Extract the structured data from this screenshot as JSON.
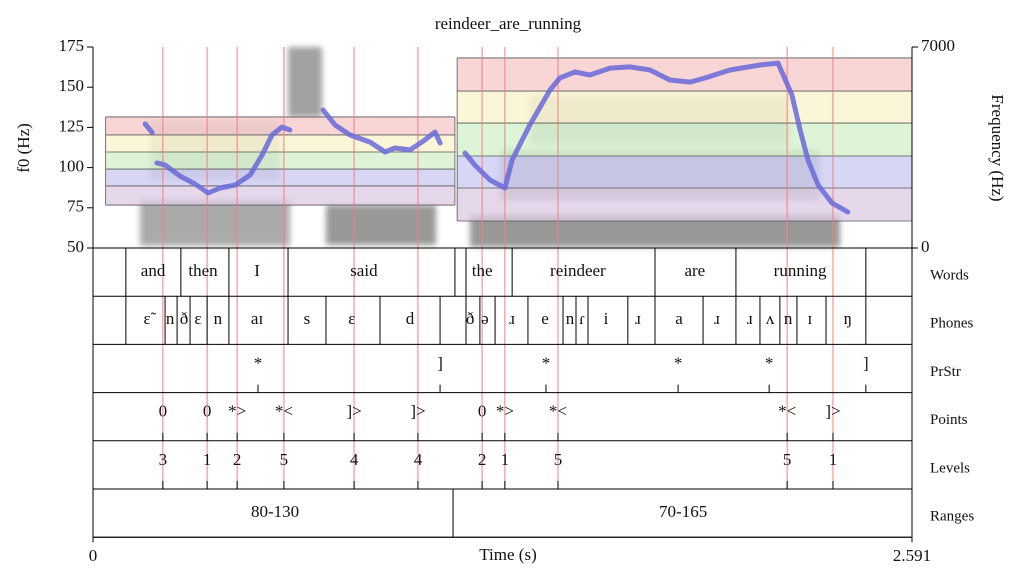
{
  "chart_data": {
    "type": "line",
    "title": "reindeer_are_running",
    "ylabel": "f0 (Hz)",
    "y2label": "Frequency (Hz)",
    "xlabel": "Time (s)",
    "xlim": [
      0,
      2.591
    ],
    "xticks": [
      0,
      2.591
    ],
    "ylim": [
      50,
      175
    ],
    "yticks": [
      50,
      75,
      100,
      125,
      150,
      175
    ],
    "y2lim": [
      0,
      7000
    ],
    "y2ticks": [
      0,
      7000
    ],
    "series": [
      {
        "color": "#6868d8",
        "x": [
          0.165,
          0.187,
          0.195,
          0.202,
          0.228,
          0.275,
          0.323,
          0.364,
          0.402,
          0.45,
          0.497,
          0.535,
          0.566,
          0.598,
          0.623,
          0.68,
          0.728,
          0.766,
          0.813,
          0.876,
          0.924,
          0.955,
          1.003,
          1.05,
          1.082,
          1.098,
          1.14,
          1.177,
          1.208,
          1.256,
          1.303,
          1.326,
          1.382,
          1.446,
          1.477,
          1.525,
          1.572,
          1.636,
          1.699,
          1.762,
          1.825,
          1.889,
          1.936,
          2.015,
          2.11,
          2.167,
          2.211,
          2.237,
          2.262,
          2.294,
          2.338,
          2.388
        ],
        "values": [
          127.1,
          121.9,
          null,
          102.9,
          101.6,
          94.8,
          89.8,
          84.2,
          87.3,
          89.2,
          95.4,
          107.8,
          120.3,
          125.2,
          123.4,
          null,
          135.8,
          126.5,
          120.3,
          115.9,
          109.7,
          112.2,
          111.0,
          117.2,
          122.1,
          115.3,
          null,
          109.1,
          101.6,
          92.3,
          87.3,
          104.7,
          126.5,
          148.3,
          155.7,
          159.5,
          157.6,
          161.9,
          162.6,
          160.7,
          154.5,
          153.2,
          155.7,
          160.7,
          163.8,
          165.0,
          145.2,
          123.4,
          104.7,
          89.2,
          78.0,
          72.4
        ]
      }
    ],
    "range_boxes": [
      {
        "xlim": [
          0.04,
          1.145
        ],
        "levels": [
          76.7,
          88.6,
          99.1,
          109.7,
          120.3,
          131.5
        ]
      },
      {
        "xlim": [
          1.152,
          2.591
        ],
        "levels": [
          66.8,
          87.3,
          107.2,
          127.7,
          147.6,
          168.2
        ]
      }
    ],
    "band_colors": [
      "#dccbe4",
      "#c9c9f2",
      "#d3f0c9",
      "#f8f3c9",
      "#f5c8c8"
    ],
    "tiers": [
      {
        "name": "Words",
        "kind": "interval",
        "boundaries": [
          0.104,
          0.278,
          0.43,
          0.617,
          1.145,
          1.18,
          1.326,
          1.778,
          2.034,
          2.445
        ],
        "labels": [
          "and",
          "then",
          "I",
          "said",
          "the",
          "reindeer",
          "are",
          "running"
        ],
        "label_times": [
          0.19,
          0.348,
          0.519,
          0.857,
          1.231,
          1.534,
          1.904,
          2.237
        ]
      },
      {
        "name": "Phones",
        "kind": "interval",
        "boundaries": [
          0.104,
          0.228,
          0.266,
          0.307,
          0.361,
          0.43,
          0.617,
          0.737,
          0.908,
          1.098,
          1.18,
          1.224,
          1.272,
          1.376,
          1.487,
          1.528,
          1.566,
          1.692,
          1.778,
          1.93,
          2.034,
          2.11,
          2.173,
          2.227,
          2.319,
          2.445
        ],
        "labels": [
          "ɛ̃",
          "n",
          "ð",
          "ɛ",
          "n",
          "aɪ",
          "s",
          "ɛ",
          "d",
          "ð",
          "ə",
          "ɹ",
          "e",
          "n",
          "ɾ",
          "i",
          "ɹ",
          "a",
          "ɹ",
          "ɹ",
          "ʌ",
          "n",
          "ɪ",
          "ŋ"
        ],
        "label_times": [
          0.171,
          0.244,
          0.288,
          0.332,
          0.395,
          0.519,
          0.677,
          0.819,
          1.003,
          1.193,
          1.24,
          1.326,
          1.43,
          1.509,
          1.547,
          1.623,
          1.724,
          1.854,
          1.974,
          2.078,
          2.142,
          2.199,
          2.268,
          2.388
        ]
      },
      {
        "name": "PrStr",
        "kind": "point",
        "times": [
          0.522,
          1.098,
          1.433,
          1.851,
          2.139,
          2.445
        ],
        "labels": [
          "*",
          "]",
          "*",
          "*",
          "*",
          "]"
        ]
      },
      {
        "name": "Points",
        "kind": "point",
        "guides": true,
        "times": [
          0.221,
          0.361,
          0.456,
          0.604,
          0.826,
          1.028,
          1.231,
          1.303,
          1.471,
          2.196,
          2.341
        ],
        "labels": [
          "0",
          "0",
          "*>",
          "*<",
          "]>",
          "]>",
          "0",
          "*>",
          "*<",
          "*<",
          "]>"
        ]
      },
      {
        "name": "Levels",
        "kind": "point",
        "times": [
          0.221,
          0.361,
          0.456,
          0.604,
          0.826,
          1.028,
          1.231,
          1.303,
          1.471,
          2.196,
          2.341
        ],
        "labels": [
          "3",
          "1",
          "2",
          "5",
          "4",
          "4",
          "2",
          "1",
          "5",
          "5",
          "1"
        ]
      },
      {
        "name": "Ranges",
        "kind": "interval",
        "boundaries": [
          1.139
        ],
        "labels": [
          "80-130",
          "70-165"
        ],
        "label_times": [
          0.576,
          1.867
        ]
      }
    ]
  }
}
